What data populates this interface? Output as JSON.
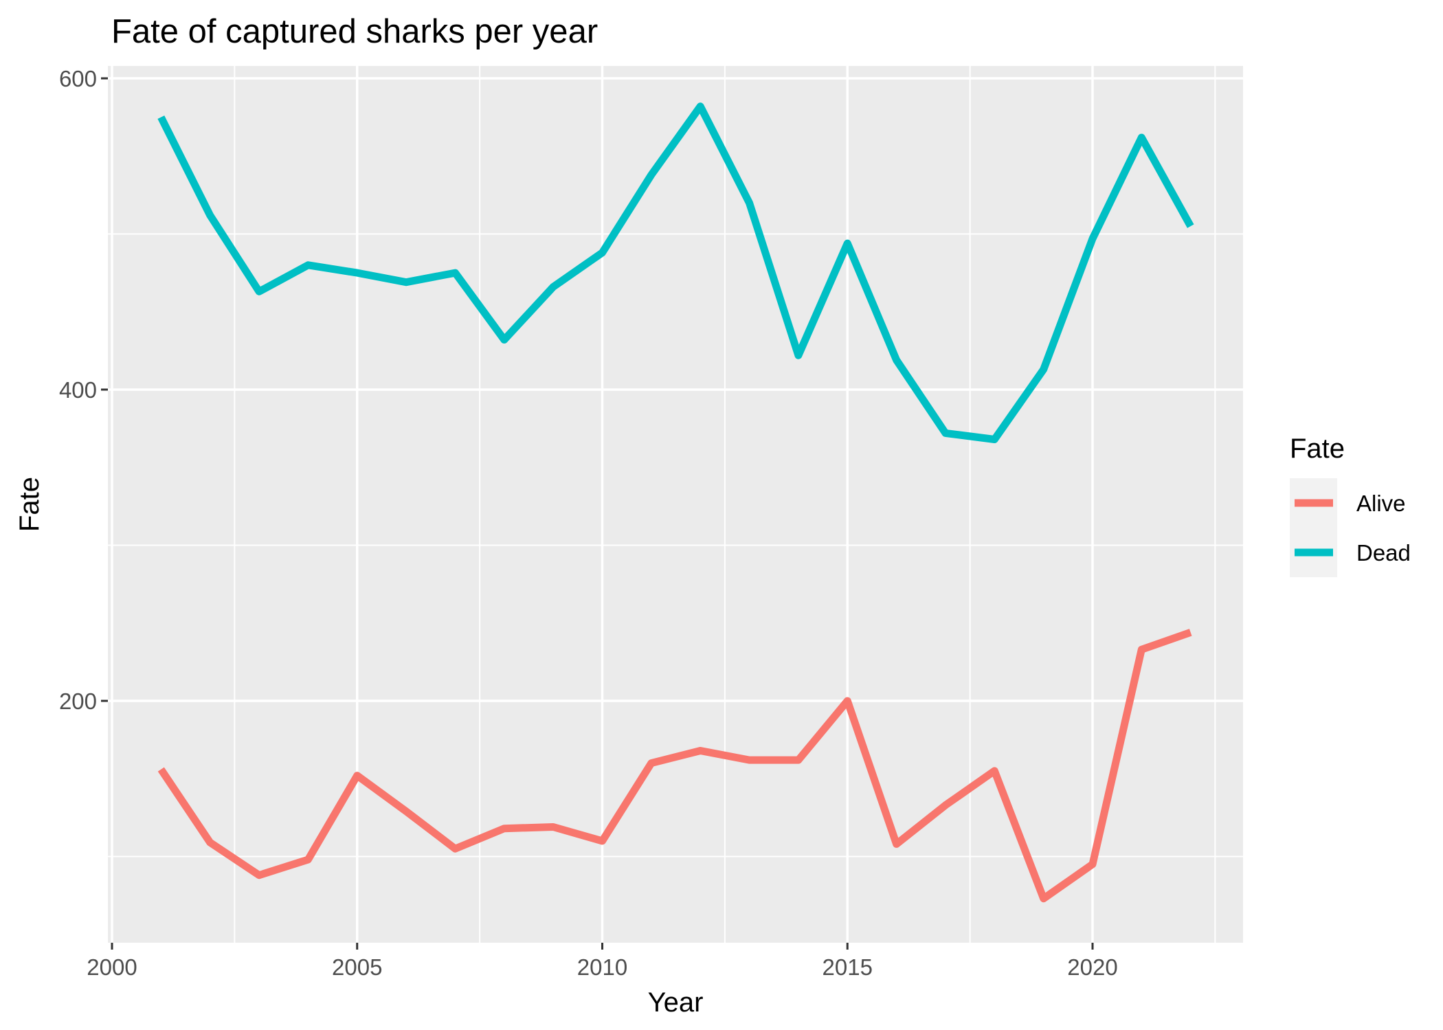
{
  "chart_data": {
    "type": "line",
    "title": "Fate of captured sharks per year",
    "xlabel": "Year",
    "ylabel": "Fate",
    "xlim": [
      2000,
      2023
    ],
    "ylim": [
      50,
      600
    ],
    "x_ticks": [
      2000,
      2005,
      2010,
      2015,
      2020
    ],
    "y_ticks": [
      200,
      400,
      600
    ],
    "grid": true,
    "legend_position": "right",
    "legend_title": "Fate",
    "x": [
      2001,
      2002,
      2003,
      2004,
      2005,
      2006,
      2007,
      2008,
      2009,
      2010,
      2011,
      2012,
      2013,
      2014,
      2015,
      2016,
      2017,
      2018,
      2019,
      2020,
      2021,
      2022
    ],
    "series": [
      {
        "name": "Alive",
        "color": "#F8766D",
        "values": [
          156,
          109,
          88,
          98,
          152,
          129,
          105,
          118,
          119,
          110,
          160,
          168,
          162,
          162,
          200,
          108,
          133,
          155,
          73,
          95,
          233,
          244
        ]
      },
      {
        "name": "Dead",
        "color": "#00BFC4",
        "values": [
          575,
          512,
          463,
          480,
          475,
          469,
          475,
          432,
          466,
          488,
          538,
          582,
          520,
          422,
          494,
          419,
          372,
          368,
          413,
          497,
          562,
          505
        ]
      }
    ]
  }
}
